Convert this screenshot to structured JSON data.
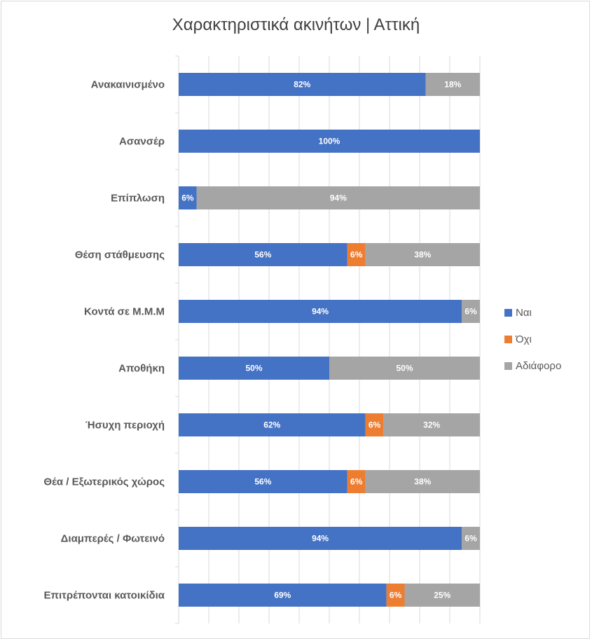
{
  "chart_data": {
    "type": "bar",
    "orientation": "horizontal",
    "stacked": "percent",
    "title": "Χαρακτηριστικά ακινήτων | Αττική",
    "categories": [
      "Ανακαινισμένο",
      "Ασανσέρ",
      "Επίπλωση",
      "Θέση στάθμευσης",
      "Κοντά σε Μ.Μ.Μ",
      "Αποθήκη",
      "Ήσυχη περιοχή",
      "Θέα / Εξωτερικός χώρος",
      "Διαμπερές / Φωτεινό",
      "Επιτρέπονται κατοικίδια"
    ],
    "series": [
      {
        "name": "Ναι",
        "color": "#4472c4",
        "values": [
          82,
          100,
          6,
          56,
          94,
          50,
          62,
          56,
          94,
          69
        ]
      },
      {
        "name": "Όχι",
        "color": "#ed7d31",
        "values": [
          0,
          0,
          0,
          6,
          0,
          0,
          6,
          6,
          0,
          6
        ]
      },
      {
        "name": "Αδιάφορο",
        "color": "#a5a5a5",
        "values": [
          18,
          0,
          94,
          38,
          6,
          50,
          32,
          38,
          6,
          25
        ]
      }
    ],
    "value_suffix": "%",
    "xlim": [
      0,
      100
    ],
    "grid": true,
    "legend_position": "right"
  }
}
